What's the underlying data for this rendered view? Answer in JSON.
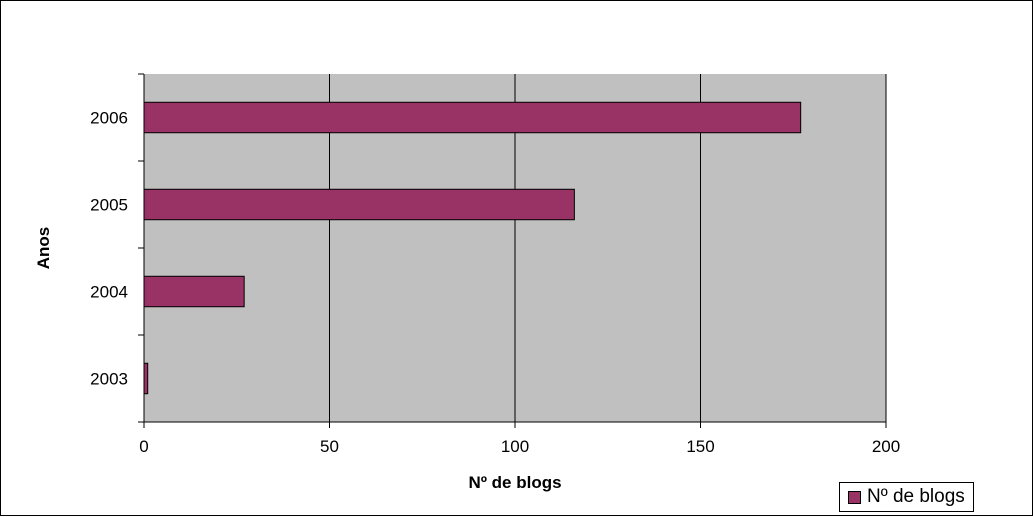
{
  "chart_data": {
    "type": "bar",
    "orientation": "horizontal",
    "categories": [
      "2003",
      "2004",
      "2005",
      "2006"
    ],
    "series": [
      {
        "name": "Nº de blogs",
        "values": [
          1,
          27,
          116,
          177
        ]
      }
    ],
    "xlabel": "Nº de blogs",
    "ylabel": "Anos",
    "xlim": [
      0,
      200
    ],
    "xticks": [
      0,
      50,
      100,
      150,
      200
    ],
    "grid": "vertical",
    "legend": "bottom-right",
    "colors": {
      "bar": "#993366",
      "plot_background": "#c0c0c0",
      "gridline": "#000000"
    }
  }
}
